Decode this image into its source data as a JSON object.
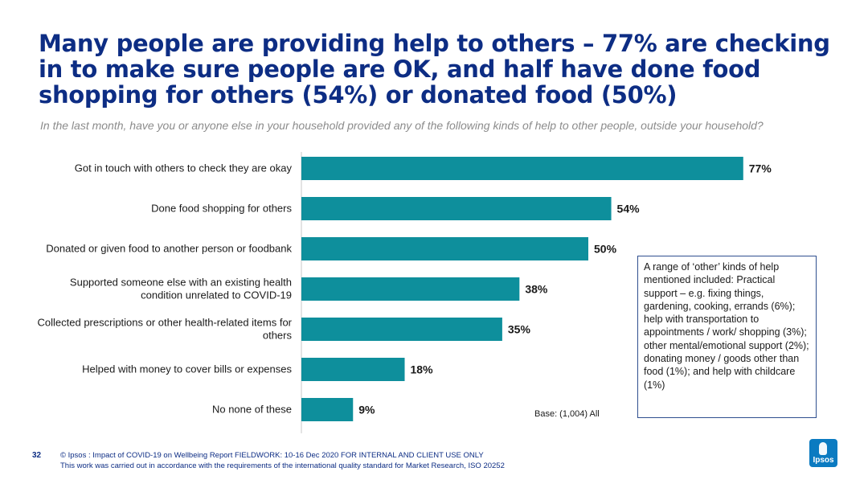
{
  "header": {
    "title": "Many people are providing help to others – 77% are checking in to make sure people are OK, and half have done food shopping for others (54%) or donated food (50%)",
    "question": "In the last month, have you or anyone else in your household provided any of the following kinds of help to other people, outside your household?"
  },
  "chart_data": {
    "type": "bar",
    "orientation": "horizontal",
    "categories": [
      "Got in touch with others to check they are okay",
      "Done food shopping for others",
      "Donated or given food to another person or foodbank",
      "Supported someone else with an existing health condition unrelated to COVID-19",
      "Collected prescriptions or other health-related items for others",
      "Helped with money to cover bills or expenses",
      "No none of these"
    ],
    "category_lines": [
      [
        "Got in touch with others to check they are okay"
      ],
      [
        "Done food shopping for others"
      ],
      [
        "Donated or given food to another person or foodbank"
      ],
      [
        "Supported someone else with an existing health",
        "condition unrelated to COVID-19"
      ],
      [
        "Collected prescriptions or other health-related items for",
        "others"
      ],
      [
        "Helped with money to cover bills or expenses"
      ],
      [
        "No none of these"
      ]
    ],
    "values": [
      77,
      54,
      50,
      38,
      35,
      18,
      9
    ],
    "value_labels": [
      "77%",
      "54%",
      "50%",
      "38%",
      "35%",
      "18%",
      "9%"
    ],
    "unit": "%",
    "xlim": [
      0,
      100
    ],
    "bar_color": "#0e8f9c",
    "grid": false,
    "legend": "none"
  },
  "notes": {
    "base": "Base: (1,004) All",
    "other_box": "A range of ‘other’ kinds of help mentioned included: Practical support – e.g. fixing things, gardening, cooking, errands (6%); help with transportation to appointments / work/ shopping (3%); other mental/emotional support (2%); donating money / goods other than food (1%); and help with childcare (1%)"
  },
  "footer": {
    "page_number": "32",
    "line1": "© Ipsos : Impact of COVID-19 on Wellbeing Report FIELDWORK: 10-16 Dec 2020 FOR INTERNAL AND CLIENT USE ONLY",
    "line2": "This work was carried out in accordance with the requirements of the international quality standard for Market Research, ISO 20252",
    "logo_text": "Ipsos"
  },
  "colors": {
    "title": "#0d2d84",
    "bar": "#0e8f9c",
    "axis": "#c8c8c8",
    "logo": "#0b7bc1"
  }
}
